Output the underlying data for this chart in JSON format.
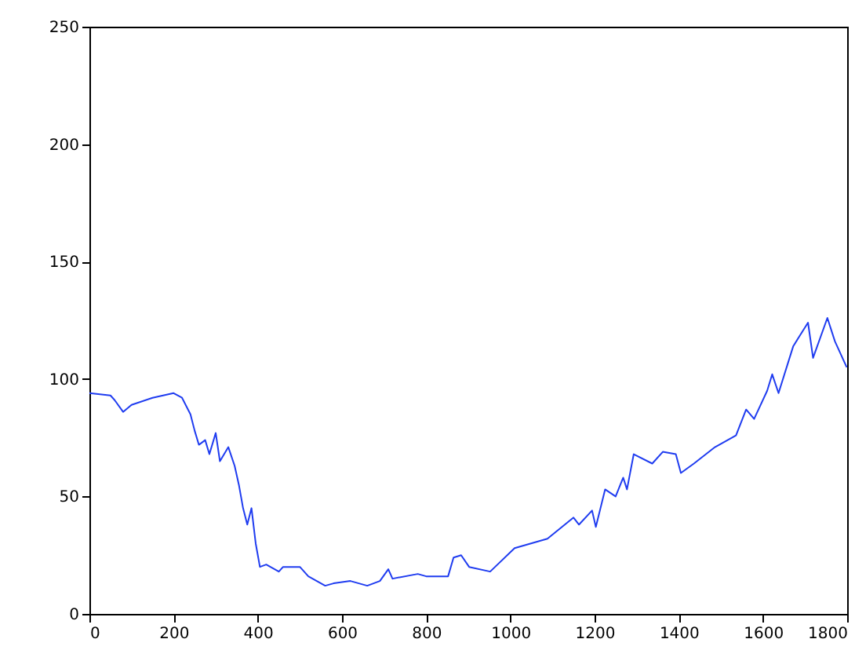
{
  "chart_data": {
    "type": "line",
    "x": [
      0,
      50,
      60,
      80,
      100,
      150,
      200,
      220,
      240,
      250,
      260,
      275,
      285,
      300,
      310,
      330,
      345,
      355,
      365,
      375,
      385,
      395,
      405,
      420,
      450,
      460,
      500,
      520,
      560,
      580,
      620,
      660,
      690,
      710,
      720,
      780,
      800,
      852,
      865,
      883,
      902,
      952,
      1010,
      1088,
      1150,
      1163,
      1194,
      1203,
      1225,
      1250,
      1268,
      1277,
      1293,
      1337,
      1362,
      1393,
      1405,
      1436,
      1486,
      1536,
      1560,
      1579,
      1610,
      1622,
      1637,
      1672,
      1707,
      1719,
      1753,
      1771,
      1799
    ],
    "series": [
      {
        "color": "#1f3cf0",
        "values": [
          94,
          93,
          91,
          86,
          89,
          92,
          94,
          92,
          85,
          78,
          72,
          74,
          68,
          77,
          65,
          71,
          63,
          55,
          45,
          38,
          45,
          30,
          20,
          21,
          18,
          20,
          20,
          16,
          12,
          13,
          14,
          12,
          14,
          19,
          15,
          17,
          16,
          16,
          24,
          25,
          20,
          18,
          28,
          32,
          41,
          38,
          44,
          37,
          53,
          50,
          58,
          53,
          68,
          64,
          69,
          68,
          60,
          64,
          71,
          76,
          87,
          83,
          95,
          102,
          94,
          114,
          124,
          109,
          126,
          116,
          105
        ]
      }
    ],
    "xlim": [
      0,
      1800
    ],
    "xticks": [
      0,
      200,
      400,
      600,
      800,
      1000,
      1200,
      1400,
      1600,
      1800
    ],
    "ylim": [
      0,
      250
    ],
    "yticks": [
      0,
      50,
      100,
      150,
      200,
      250
    ],
    "grid": false,
    "line_style": "solid"
  }
}
